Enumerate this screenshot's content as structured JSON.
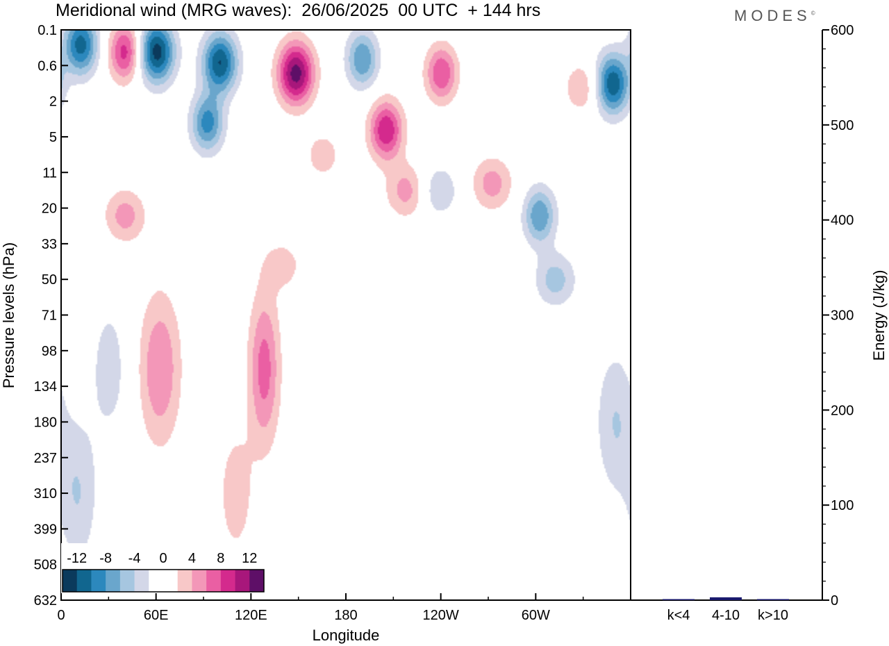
{
  "header": {
    "title": "Meridional wind (MRG waves):  26/06/2025  00 UTC  + 144 hrs",
    "logo": "MODES"
  },
  "colors": {
    "neg_levels": [
      "#0b3a5c",
      "#11668f",
      "#2c88bd",
      "#6aa6cc",
      "#a6c6e0",
      "#d3d7e8"
    ],
    "pos_levels": [
      "#f8c8c8",
      "#f397b8",
      "#ea5fa3",
      "#d42a8d",
      "#a8177b",
      "#5e0f67"
    ],
    "zero": "#ffffff",
    "energy_bar": "#1a1a6e"
  },
  "chart_data": [
    {
      "type": "heatmap",
      "title": "Meridional wind (MRG waves):  26/06/2025  00 UTC  + 144 hrs",
      "xlabel": "Longitude",
      "ylabel": "Pressure levels (hPa)",
      "x_ticks": [
        "0",
        "60E",
        "120E",
        "180",
        "120W",
        "60W"
      ],
      "x_tick_values": [
        0,
        60,
        120,
        180,
        240,
        300
      ],
      "xlim": [
        0,
        360
      ],
      "y_ticks": [
        "0.1",
        "0.6",
        "2",
        "5",
        "11",
        "20",
        "33",
        "50",
        "71",
        "98",
        "134",
        "180",
        "237",
        "310",
        "399",
        "508",
        "632"
      ],
      "colorbar": {
        "labels": [
          "-12",
          "-8",
          "-4",
          "0",
          "4",
          "8",
          "12"
        ],
        "levels": [
          -12,
          -10,
          -8,
          -6,
          -4,
          -2,
          2,
          4,
          6,
          8,
          10,
          12
        ]
      },
      "blobs": [
        {
          "lon": 12,
          "lev": 0.4,
          "val": -11
        },
        {
          "lon": 40,
          "lev": 0.6,
          "val": 9
        },
        {
          "lon": 60,
          "lev": 0.6,
          "val": -13
        },
        {
          "lon": 92,
          "lev": 2.6,
          "val": -9
        },
        {
          "lon": 100,
          "lev": 0.9,
          "val": -12
        },
        {
          "lon": 148,
          "lev": 1.2,
          "val": 13
        },
        {
          "lon": 190,
          "lev": 0.8,
          "val": -8
        },
        {
          "lon": 205,
          "lev": 2.8,
          "val": 10
        },
        {
          "lon": 240,
          "lev": 1.2,
          "val": 8
        },
        {
          "lon": 218,
          "lev": 4.5,
          "val": 5
        },
        {
          "lon": 238,
          "lev": 4.5,
          "val": -4
        },
        {
          "lon": 272,
          "lev": 4.3,
          "val": 5
        },
        {
          "lon": 302,
          "lev": 5.2,
          "val": -8
        },
        {
          "lon": 312,
          "lev": 7.0,
          "val": -5
        },
        {
          "lon": 330,
          "lev": 1.6,
          "val": 4
        },
        {
          "lon": 348,
          "lev": 1.5,
          "val": -12
        },
        {
          "lon": 165,
          "lev": 3.5,
          "val": 3
        },
        {
          "lon": 40,
          "lev": 5.2,
          "val": 5
        },
        {
          "lon": 62,
          "lev": 9.5,
          "val": 6
        },
        {
          "lon": 128,
          "lev": 9.5,
          "val": 7
        },
        {
          "lon": 140,
          "lev": 6.6,
          "val": 3
        },
        {
          "lon": 30,
          "lev": 9.5,
          "val": -3
        },
        {
          "lon": 350,
          "lev": 11,
          "val": -4
        },
        {
          "lon": 10,
          "lev": 13,
          "val": -4
        },
        {
          "lon": 110,
          "lev": 13,
          "val": 3
        },
        {
          "lon": 160,
          "lev": 18,
          "val": 3
        },
        {
          "lon": 20,
          "lev": 21,
          "val": -3
        },
        {
          "lon": 40,
          "lev": 22,
          "val": -3
        },
        {
          "lon": 120,
          "lev": 24,
          "val": 4
        },
        {
          "lon": 158,
          "lev": 24,
          "val": 3
        },
        {
          "lon": 80,
          "lev": 29,
          "val": -2
        },
        {
          "lon": 350,
          "lev": 30,
          "val": 3
        },
        {
          "lon": 42,
          "lev": 33,
          "val": 3
        },
        {
          "lon": 15,
          "lev": 44,
          "val": -8
        },
        {
          "lon": 30,
          "lev": 60,
          "val": -6
        },
        {
          "lon": 0,
          "lev": 62,
          "val": 3
        },
        {
          "lon": 46,
          "lev": 62,
          "val": 7
        },
        {
          "lon": 75,
          "lev": 58,
          "val": -9
        },
        {
          "lon": 105,
          "lev": 56,
          "val": -4
        },
        {
          "lon": 120,
          "lev": 64,
          "val": -4
        },
        {
          "lon": 140,
          "lev": 60,
          "val": 3
        },
        {
          "lon": 176,
          "lev": 56,
          "val": 10
        },
        {
          "lon": 192,
          "lev": 64,
          "val": -4
        },
        {
          "lon": 222,
          "lev": 58,
          "val": 9
        },
        {
          "lon": 206,
          "lev": 68,
          "val": -6
        },
        {
          "lon": 258,
          "lev": 64,
          "val": -10
        },
        {
          "lon": 278,
          "lev": 60,
          "val": 9
        },
        {
          "lon": 300,
          "lev": 40,
          "val": -6
        },
        {
          "lon": 290,
          "lev": 40,
          "val": 5
        },
        {
          "lon": 327,
          "lev": 70,
          "val": -7
        },
        {
          "lon": 348,
          "lev": 38,
          "val": 9
        },
        {
          "lon": 356,
          "lev": 60,
          "val": 5
        },
        {
          "lon": 140,
          "lev": 82,
          "val": 7
        },
        {
          "lon": 176,
          "lev": 80,
          "val": -3
        },
        {
          "lon": 198,
          "lev": 88,
          "val": 3
        },
        {
          "lon": 275,
          "lev": 86,
          "val": 3
        },
        {
          "lon": 252,
          "lev": 84,
          "val": -3
        },
        {
          "lon": 30,
          "lev": 80,
          "val": -4
        },
        {
          "lon": 352,
          "lev": 84,
          "val": 5
        }
      ]
    },
    {
      "type": "bar",
      "ylabel": "Energy (J/kg)",
      "categories": [
        "k<4",
        "4-10",
        "k>10"
      ],
      "values": [
        0.5,
        3,
        0.3
      ],
      "ylim": [
        0,
        600
      ],
      "y_ticks": [
        "0",
        "100",
        "200",
        "300",
        "400",
        "500",
        "600"
      ],
      "y_tick_values": [
        0,
        100,
        200,
        300,
        400,
        500,
        600
      ]
    }
  ]
}
